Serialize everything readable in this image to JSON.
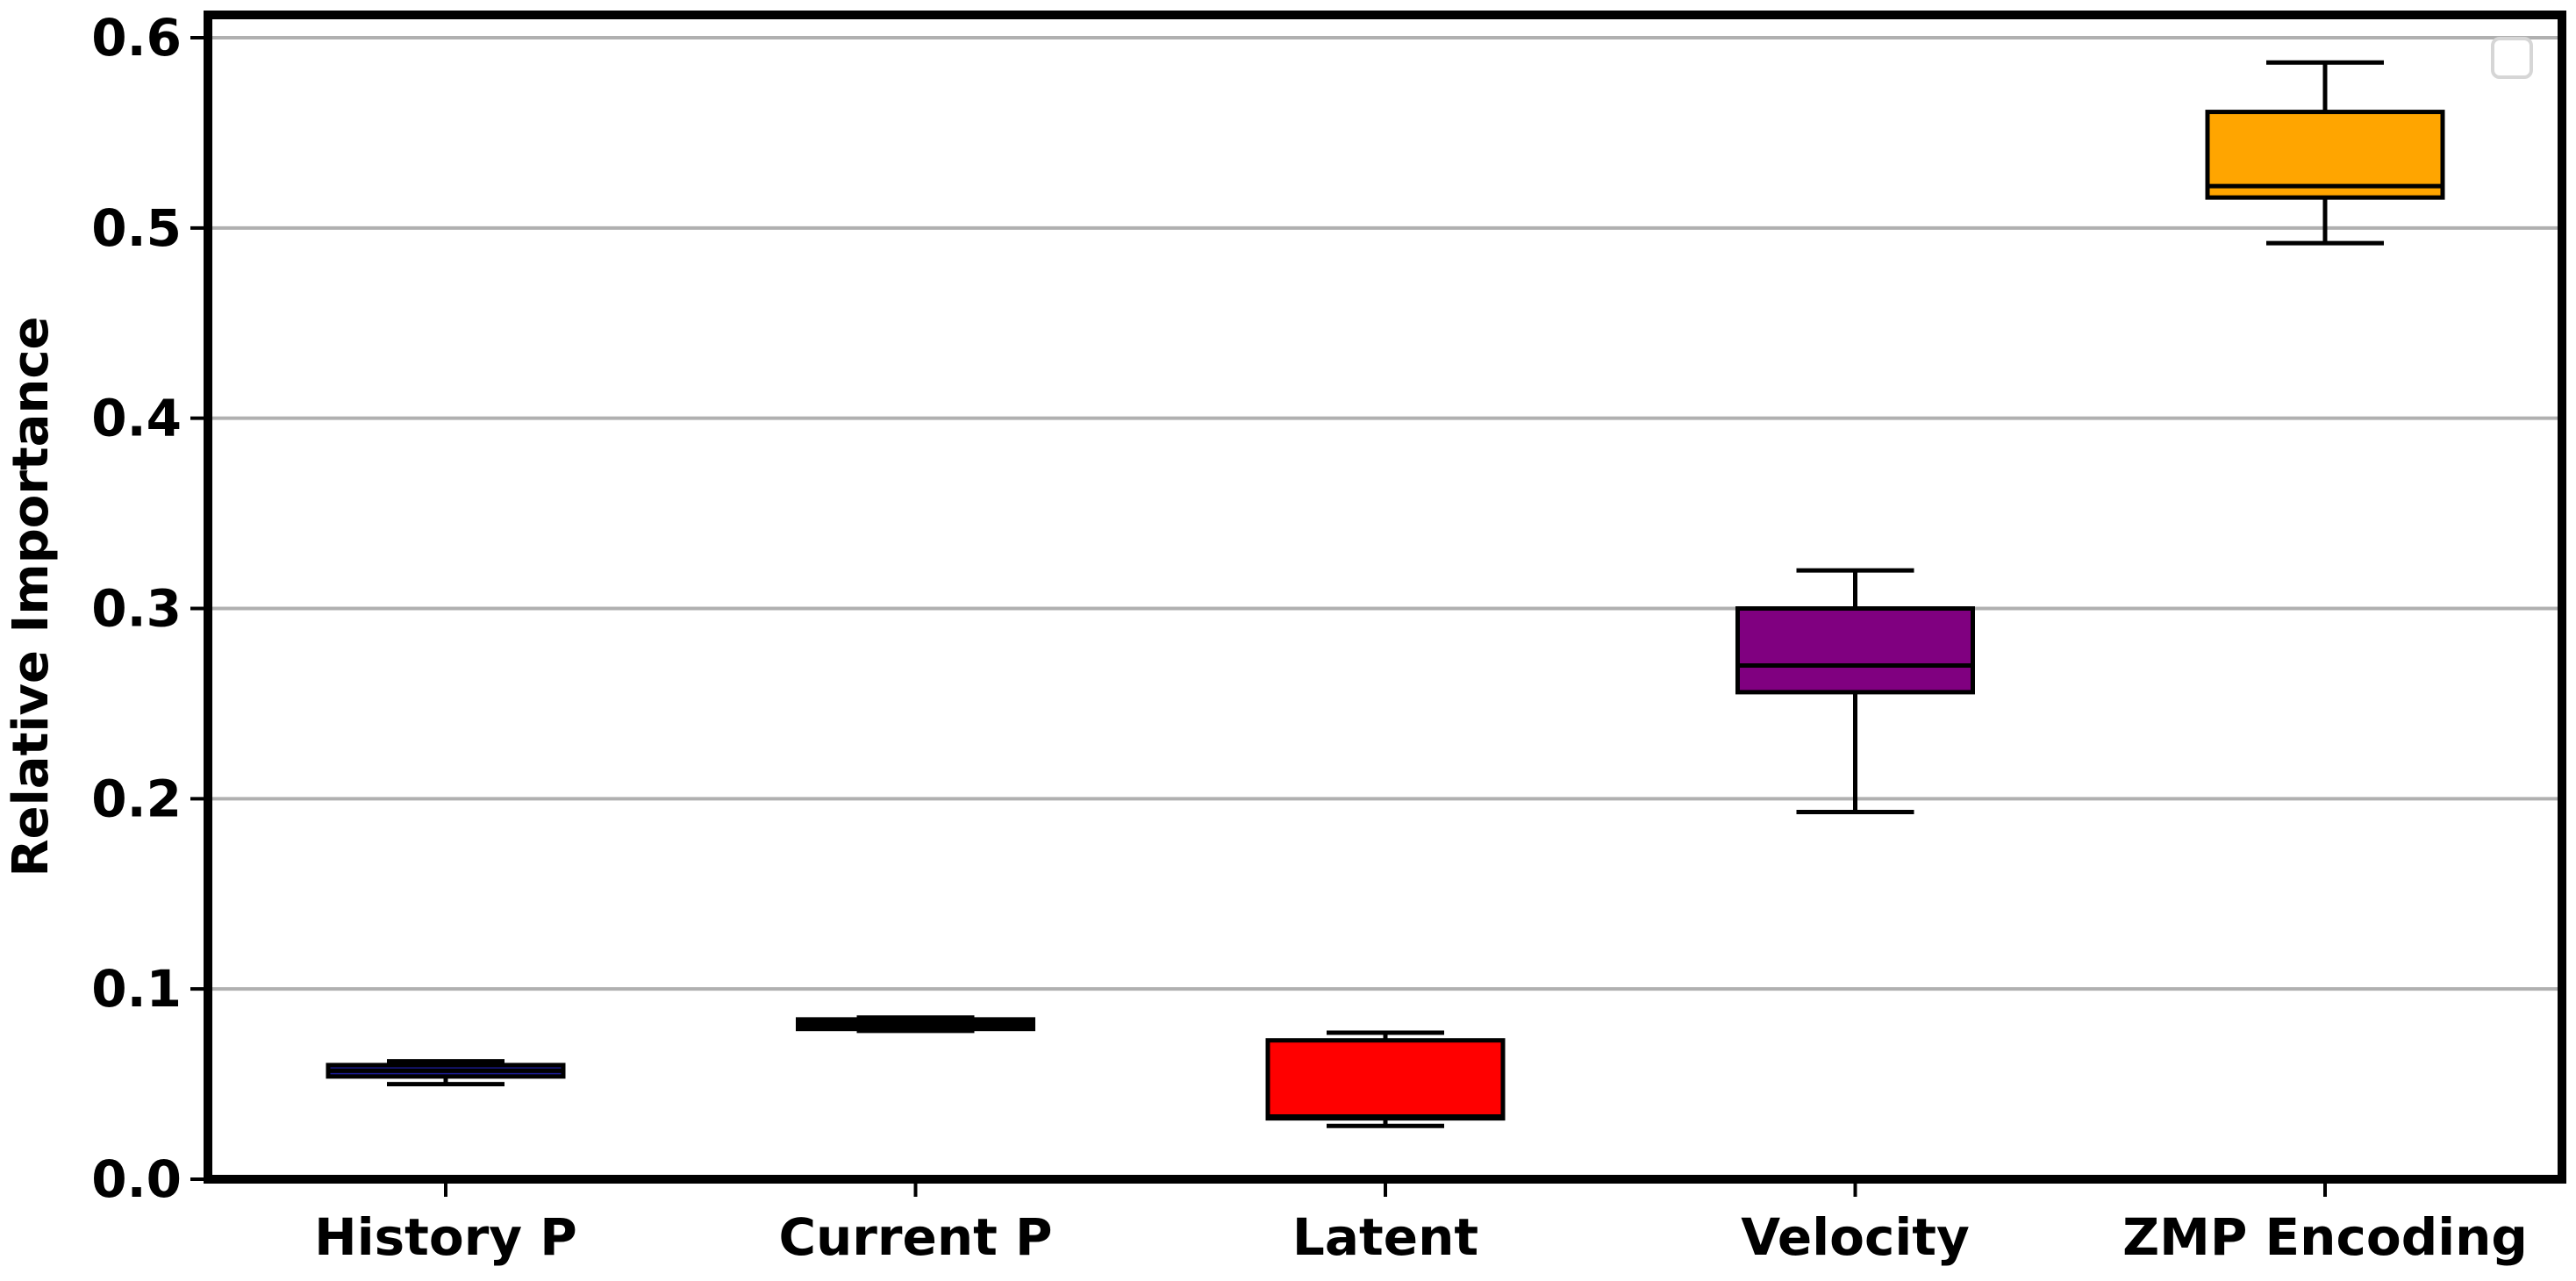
{
  "chart_data": {
    "type": "box",
    "title": "",
    "xlabel": "",
    "ylabel": "Relative Importance",
    "ylim": [
      0.0,
      0.615
    ],
    "yticks": [
      0.0,
      0.1,
      0.2,
      0.3,
      0.4,
      0.5,
      0.6
    ],
    "ytick_labels": [
      "0.0",
      "0.1",
      "0.2",
      "0.3",
      "0.4",
      "0.5",
      "0.6"
    ],
    "grid": "horizontal",
    "legend": {
      "placement": "top-right",
      "entries": []
    },
    "categories": [
      "History P",
      "Current P",
      "Latent",
      "Velocity",
      "ZMP Encoding"
    ],
    "boxes": [
      {
        "category": "History P",
        "whisker_low": 0.05,
        "q1": 0.054,
        "median": 0.057,
        "q3": 0.06,
        "whisker_high": 0.062,
        "color": "#1a1a8c"
      },
      {
        "category": "Current P",
        "whisker_low": 0.078,
        "q1": 0.079,
        "median": 0.082,
        "q3": 0.084,
        "whisker_high": 0.085,
        "color": "#000000"
      },
      {
        "category": "Latent",
        "whisker_low": 0.028,
        "q1": 0.032,
        "median": 0.033,
        "q3": 0.073,
        "whisker_high": 0.077,
        "color": "#ff0000"
      },
      {
        "category": "Velocity",
        "whisker_low": 0.193,
        "q1": 0.256,
        "median": 0.27,
        "q3": 0.3,
        "whisker_high": 0.32,
        "color": "#800080"
      },
      {
        "category": "ZMP Encoding",
        "whisker_low": 0.492,
        "q1": 0.516,
        "median": 0.522,
        "q3": 0.561,
        "whisker_high": 0.587,
        "color": "#ffa500"
      }
    ]
  }
}
